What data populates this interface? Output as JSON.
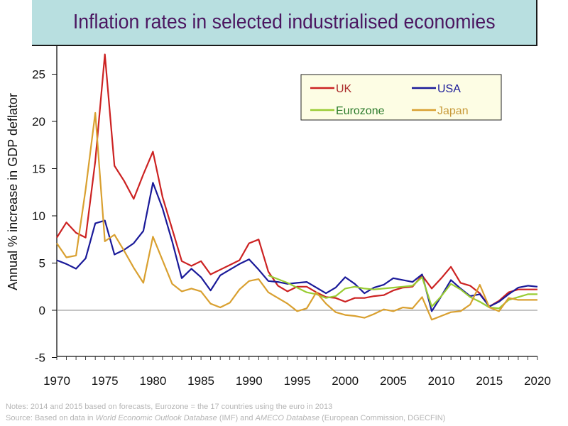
{
  "title": "Inflation rates in selected industrialised economies",
  "notes": {
    "line1": "Notes: 2014 and 2015 based on forecasts, Eurozone = the 17 countries using the euro in 2013",
    "line2_prefix": "Source: Based on data in ",
    "line2_weo": "World Economic Outlook Database",
    "line2_mid": " (IMF) and ",
    "line2_ameco": "AMECO Database",
    "line2_suffix": " (European Commission, DGECFIN)"
  },
  "chart_data": {
    "type": "line",
    "title": "Inflation rates in selected industrialised economies",
    "xlabel": "",
    "ylabel": "Annual % increase in GDP deflator",
    "xlim": [
      1970,
      2020
    ],
    "ylim": [
      -5,
      27
    ],
    "xticks": [
      1970,
      1975,
      1980,
      1985,
      1990,
      1995,
      2000,
      2005,
      2010,
      2015,
      2020
    ],
    "yticks": [
      -5,
      0,
      5,
      10,
      15,
      20,
      25
    ],
    "grid": false,
    "zero_line": true,
    "legend_position": "top-right",
    "series": [
      {
        "name": "UK",
        "color": "#cc2222",
        "start_year": 1970,
        "values": [
          7.7,
          9.3,
          8.2,
          7.7,
          15.8,
          27.1,
          15.3,
          13.7,
          11.8,
          14.4,
          16.8,
          12.0,
          8.6,
          5.2,
          4.7,
          5.2,
          3.8,
          4.3,
          4.8,
          5.3,
          7.1,
          7.5,
          4.1,
          2.6,
          2.0,
          2.5,
          2.5,
          1.9,
          1.4,
          1.3,
          0.9,
          1.3,
          1.3,
          1.5,
          1.6,
          2.1,
          2.4,
          2.5,
          3.7,
          2.3,
          3.4,
          4.6,
          2.9,
          2.6,
          1.8,
          0.4,
          1.0,
          1.9,
          2.2,
          2.2,
          2.2
        ]
      },
      {
        "name": "USA",
        "color": "#1a1a99",
        "start_year": 1970,
        "values": [
          5.3,
          4.9,
          4.4,
          5.5,
          9.2,
          9.5,
          5.9,
          6.4,
          7.1,
          8.4,
          13.5,
          10.8,
          7.3,
          3.4,
          4.4,
          3.5,
          2.1,
          3.7,
          4.3,
          4.9,
          5.4,
          4.3,
          3.1,
          3.0,
          2.8,
          2.9,
          3.0,
          2.4,
          1.8,
          2.4,
          3.5,
          2.8,
          1.8,
          2.4,
          2.7,
          3.4,
          3.2,
          3.0,
          3.8,
          -0.1,
          1.5,
          3.2,
          2.3,
          1.5,
          1.7,
          0.4,
          0.9,
          1.7,
          2.4,
          2.6,
          2.5
        ]
      },
      {
        "name": "Eurozone",
        "color": "#99cc33",
        "start_year": 1992,
        "values": [
          3.7,
          3.3,
          2.9,
          2.4,
          1.9,
          1.7,
          1.3,
          1.5,
          2.3,
          2.5,
          2.3,
          2.2,
          2.3,
          2.4,
          2.5,
          2.6,
          3.5,
          0.4,
          1.5,
          2.8,
          2.2,
          1.4,
          0.9,
          0.3,
          0.2,
          1.1,
          1.4,
          1.7,
          1.7
        ]
      },
      {
        "name": "Japan",
        "color": "#d9a030",
        "start_year": 1970,
        "values": [
          7.1,
          5.6,
          5.8,
          12.8,
          20.9,
          7.3,
          8.0,
          6.3,
          4.5,
          2.9,
          7.8,
          5.3,
          2.8,
          2.0,
          2.3,
          2.0,
          0.7,
          0.3,
          0.8,
          2.2,
          3.1,
          3.3,
          1.9,
          1.3,
          0.7,
          -0.1,
          0.2,
          1.9,
          0.7,
          -0.2,
          -0.5,
          -0.6,
          -0.8,
          -0.4,
          0.1,
          -0.1,
          0.3,
          0.2,
          1.4,
          -1.0,
          -0.6,
          -0.2,
          -0.1,
          0.6,
          2.7,
          0.3,
          -0.1,
          1.3,
          1.1,
          1.1,
          1.1
        ]
      }
    ]
  },
  "legend": {
    "items": [
      {
        "label": "UK",
        "line_color": "#cc2222",
        "text_color": "#aa2a2a"
      },
      {
        "label": "USA",
        "line_color": "#1a1a99",
        "text_color": "#1a1a99"
      },
      {
        "label": "Eurozone",
        "line_color": "#99cc33",
        "text_color": "#2a7a2a"
      },
      {
        "label": "Japan",
        "line_color": "#d9a030",
        "text_color": "#c89a3a"
      }
    ]
  }
}
